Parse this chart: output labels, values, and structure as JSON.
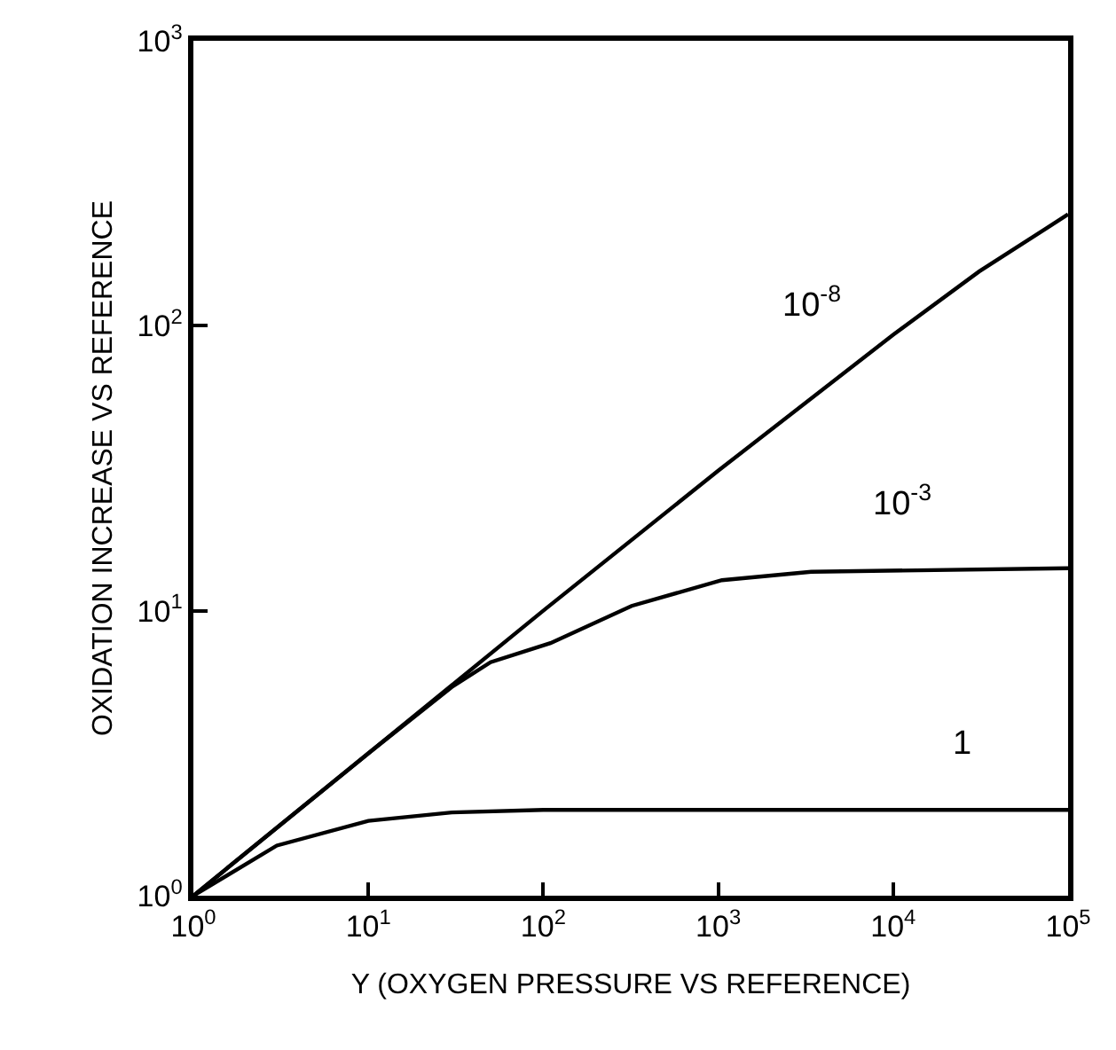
{
  "chart_data": {
    "type": "line",
    "xlabel": "Y (OXYGEN PRESSURE VS REFERENCE)",
    "ylabel": "OXIDATION INCREASE VS REFERENCE",
    "log": "xy",
    "legend": false,
    "marker": "none",
    "line_style": "solid",
    "xlim": [
      1,
      100000
    ],
    "ylim": [
      1,
      1000
    ],
    "xticks": [
      {
        "value": 1,
        "label": "10$^{0}$"
      },
      {
        "value": 10,
        "label": "10$^{1}$"
      },
      {
        "value": 100,
        "label": "10$^{2}$"
      },
      {
        "value": 1000,
        "label": "10$^{3}$"
      },
      {
        "value": 10000,
        "label": "10$^{4}$"
      },
      {
        "value": 100000,
        "label": "10$^{5}$"
      }
    ],
    "yticks": [
      {
        "value": 1,
        "label": "10$^{0}$"
      },
      {
        "value": 10,
        "label": "10$^{1}$"
      },
      {
        "value": 100,
        "label": "10$^{2}$"
      },
      {
        "value": 1000,
        "label": "10$^{3}$"
      }
    ],
    "series": [
      {
        "name": "10$^{-8}$",
        "color": "#000000",
        "x": [
          1,
          10,
          100,
          1000,
          10000,
          31000,
          100000
        ],
        "values": [
          1,
          3.16,
          10,
          31,
          93,
          155,
          246
        ]
      },
      {
        "name": "10$^{-3}$",
        "color": "#000000",
        "x": [
          1,
          10,
          30,
          50,
          110,
          320,
          1050,
          3400,
          100000
        ],
        "values": [
          1,
          3.16,
          5.4,
          6.6,
          7.7,
          10.4,
          12.8,
          13.7,
          14.1
        ]
      },
      {
        "name": "1",
        "color": "#000000",
        "x": [
          1,
          3,
          10,
          30,
          100,
          100000
        ],
        "values": [
          1,
          1.5,
          1.83,
          1.96,
          2.0,
          2.0
        ]
      }
    ]
  }
}
